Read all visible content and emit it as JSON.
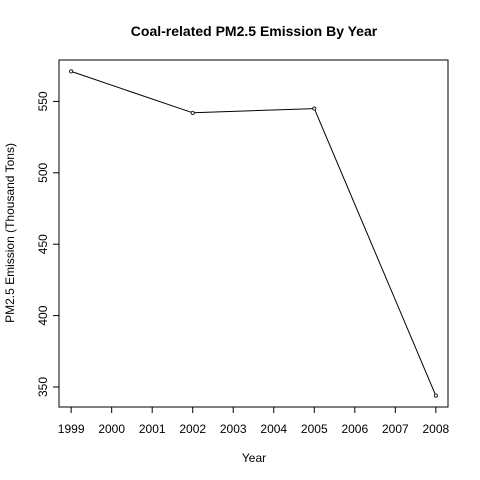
{
  "chart_data": {
    "type": "line",
    "title": "Coal-related PM2.5 Emission By Year",
    "xlabel": "Year",
    "ylabel": "PM2.5 Emission (Thousand Tons)",
    "x": [
      1999,
      2002,
      2005,
      2008
    ],
    "values": [
      571,
      542,
      545,
      344
    ],
    "xticks": [
      "1999",
      "2000",
      "2001",
      "2002",
      "2003",
      "2004",
      "2005",
      "2006",
      "2007",
      "2008"
    ],
    "yticks": [
      "350",
      "400",
      "450",
      "500",
      "550"
    ],
    "xlim": [
      1998.7,
      2008.3
    ],
    "ylim": [
      336,
      579
    ],
    "grid": false,
    "line_color": "#000000"
  }
}
